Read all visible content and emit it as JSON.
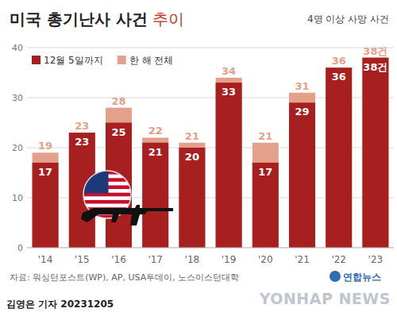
{
  "chart_data": {
    "type": "bar",
    "title": "미국 총기난사 사건",
    "title_suffix": "추이",
    "subtitle": "4명 이상 사망 사건",
    "categories": [
      "'14",
      "'15",
      "'16",
      "'17",
      "'18",
      "'19",
      "'20",
      "'21",
      "'22",
      "'23"
    ],
    "series": [
      {
        "name": "12월 5일까지",
        "color": "#a81f1f",
        "values": [
          17,
          23,
          25,
          21,
          20,
          33,
          17,
          29,
          36,
          38
        ],
        "value_labels": [
          "17",
          "23",
          "25",
          "21",
          "20",
          "33",
          "17",
          "29",
          "36",
          "38건"
        ]
      },
      {
        "name": "한 해 전체",
        "color": "#e3a08a",
        "values": [
          19,
          23,
          28,
          22,
          21,
          34,
          21,
          31,
          36,
          38
        ],
        "value_labels": [
          "19",
          "23",
          "28",
          "22",
          "21",
          "34",
          "21",
          "31",
          "36",
          "38건"
        ]
      }
    ],
    "ylim": [
      0,
      40
    ],
    "yticks": [
      0,
      10,
      20,
      30,
      40
    ],
    "grid": true,
    "stacked": false,
    "data_labels": true,
    "legend": "top-left",
    "source": "자료: 워싱턴포스트(WP), AP, USA투데이, 노스이스턴대학",
    "credit": "김영은 기자 20231205",
    "logo_text": "연합뉴스",
    "logo_brand": "YONHAP NEWS"
  }
}
